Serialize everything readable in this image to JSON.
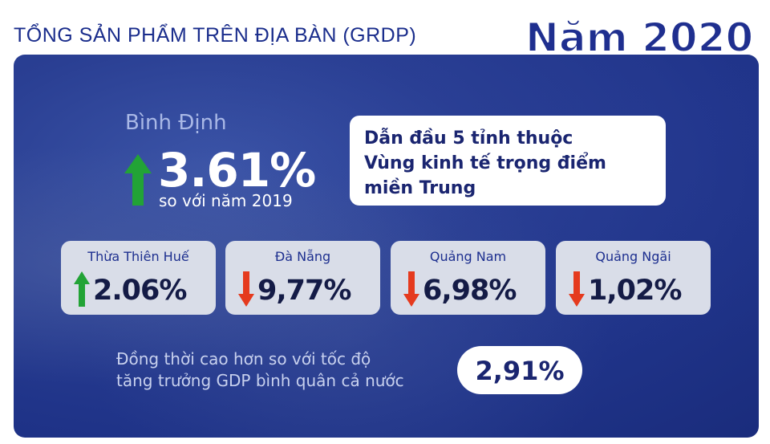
{
  "header": {
    "title": "TỔNG SẢN PHẨM TRÊN ĐỊA BÀN (GRDP)",
    "year": "Năm 2020"
  },
  "highlight": {
    "city": "Bình Định",
    "value": "3.61%",
    "trend": "up",
    "compare": "so với năm 2019"
  },
  "lead_box": {
    "lines": [
      "Dẫn đầu 5 tỉnh thuộc",
      "Vùng kinh tế trọng điểm",
      "miền Trung"
    ]
  },
  "cards": [
    {
      "name": "Thừa Thiên Huế",
      "value": "2.06%",
      "trend": "up"
    },
    {
      "name": "Đà Nẵng",
      "value": "9,77%",
      "trend": "down"
    },
    {
      "name": "Quảng Nam",
      "value": "6,98%",
      "trend": "down"
    },
    {
      "name": "Quảng Ngãi",
      "value": "1,02%",
      "trend": "down"
    }
  ],
  "bottom": {
    "lines": [
      "Đồng thời cao hơn so với tốc độ",
      "tăng trưởng GDP bình quân cả nước"
    ],
    "value": "2,91%"
  },
  "colors": {
    "panel": "#2a3f93",
    "up_arrow": "#22a336",
    "down_arrow": "#e53a1e",
    "title": "#1a2d8c"
  }
}
